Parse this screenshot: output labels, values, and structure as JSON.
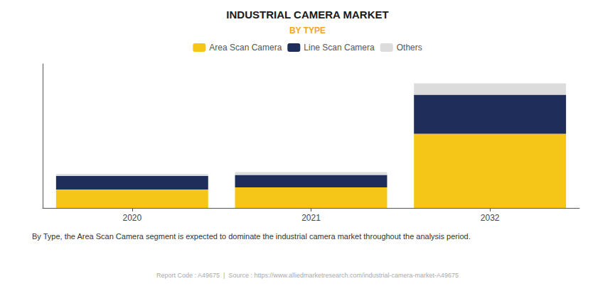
{
  "chart_data": {
    "type": "bar",
    "title": "INDUSTRIAL CAMERA MARKET",
    "subtitle": "BY TYPE",
    "annotations": [
      "By Type, the Area Scan Camera segment is expected to dominate the industrial camera market throughout the analysis period.",
      "Report Code : A49675  |  Source : https://www.alliedmarketresearch.com/industrial-camera-market-A49675"
    ],
    "categories": [
      "2020",
      "2021",
      "2032"
    ],
    "series": [
      {
        "name": "Area Scan Camera",
        "color": "#F5C518",
        "values": [
          1.8,
          2.0,
          7.2
        ]
      },
      {
        "name": "Line Scan Camera",
        "color": "#1E2D5A",
        "values": [
          1.3,
          1.2,
          3.8
        ]
      },
      {
        "name": "Others",
        "color": "#DCDCDC",
        "values": [
          0.2,
          0.28,
          1.1
        ]
      }
    ],
    "stacked": true,
    "ylim": [
      0,
      14
    ],
    "grid": false,
    "legend": "top",
    "tick_labels": "x"
  }
}
